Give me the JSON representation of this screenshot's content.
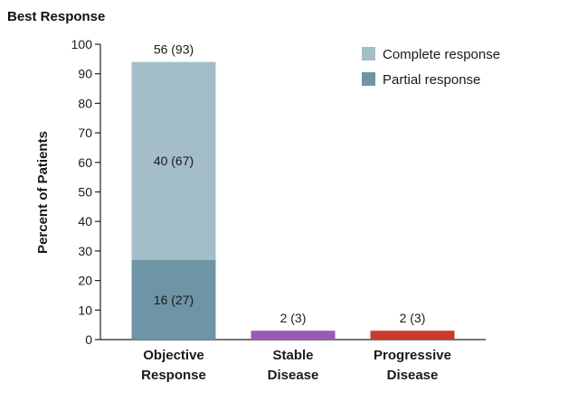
{
  "chart_data": {
    "type": "bar",
    "stacked": true,
    "title": "Best Response",
    "ylabel": "Percent of Patients",
    "xlabel": "",
    "ylim": [
      0,
      100
    ],
    "yticks": [
      0,
      10,
      20,
      30,
      40,
      50,
      60,
      70,
      80,
      90,
      100
    ],
    "categories": [
      {
        "line1": "Objective",
        "line2": "Response"
      },
      {
        "line1": "Stable",
        "line2": "Disease"
      },
      {
        "line1": "Progressive",
        "line2": "Disease"
      }
    ],
    "series": [
      {
        "name": "Partial response",
        "color": "#6e95a6",
        "values": [
          27,
          0,
          0
        ],
        "labels": [
          "16 (27)",
          "",
          ""
        ]
      },
      {
        "name": "Complete response",
        "color": "#a3bdc9",
        "values": [
          67,
          0,
          0
        ],
        "labels": [
          "40 (67)",
          "",
          ""
        ]
      },
      {
        "name": "Stable disease",
        "color": "#9b59b6",
        "values": [
          0,
          3,
          0
        ],
        "labels": [
          "",
          "",
          ""
        ]
      },
      {
        "name": "Progressive disease",
        "color": "#cc3a2e",
        "values": [
          0,
          0,
          3
        ],
        "labels": [
          "",
          "",
          ""
        ]
      }
    ],
    "totals": [
      "56 (93)",
      "2 (3)",
      "2 (3)"
    ],
    "legend": {
      "placement": "top-right",
      "entries": [
        {
          "label": "Complete response",
          "color": "#a3bdc9"
        },
        {
          "label": "Partial response",
          "color": "#6e95a6"
        }
      ]
    },
    "grid": false
  }
}
